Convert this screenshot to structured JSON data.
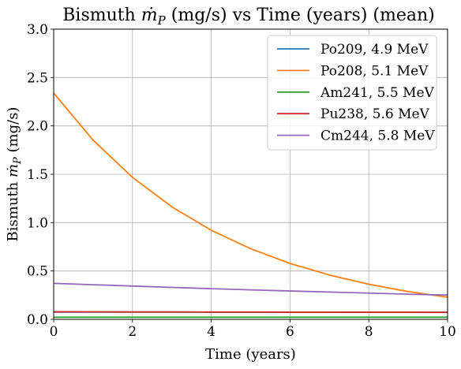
{
  "chart_data": {
    "type": "line",
    "title": {
      "prefix": "Bismuth ",
      "symbol": "ṁ",
      "subscript": "P",
      "suffix": " (mg/s) vs Time (years) (mean)"
    },
    "xlabel": "Time (years)",
    "ylabel": {
      "prefix": "Bismuth ",
      "symbol": "ṁ",
      "subscript": "P",
      "suffix": " (mg/s)"
    },
    "xlim": [
      0,
      10
    ],
    "ylim": [
      0,
      3.0
    ],
    "xticks": [
      0,
      2,
      4,
      6,
      8,
      10
    ],
    "xtick_labels": [
      "0",
      "2",
      "4",
      "6",
      "8",
      "10"
    ],
    "yticks": [
      0.0,
      0.5,
      1.0,
      1.5,
      2.0,
      2.5,
      3.0
    ],
    "ytick_labels": [
      "0.0",
      "0.5",
      "1.0",
      "1.5",
      "2.0",
      "2.5",
      "3.0"
    ],
    "grid": true,
    "legend_position": "top-right",
    "x": [
      0,
      1,
      2,
      3,
      4,
      5,
      6,
      7,
      8,
      9,
      10
    ],
    "series": [
      {
        "name": "Po209, 4.9 MeV",
        "color": "#1f77b4",
        "values": [
          0.075,
          0.075,
          0.075,
          0.075,
          0.074,
          0.074,
          0.074,
          0.074,
          0.073,
          0.073,
          0.073
        ]
      },
      {
        "name": "Po208, 5.1 MeV",
        "color": "#ff7f0e",
        "values": [
          2.34,
          1.853,
          1.468,
          1.163,
          0.921,
          0.73,
          0.578,
          0.458,
          0.363,
          0.287,
          0.228
        ]
      },
      {
        "name": "Am241, 5.5 MeV",
        "color": "#2ca02c",
        "values": [
          0.022,
          0.022,
          0.022,
          0.022,
          0.022,
          0.022,
          0.022,
          0.022,
          0.022,
          0.022,
          0.022
        ]
      },
      {
        "name": "Pu238, 5.6 MeV",
        "color": "#d62728",
        "values": [
          0.078,
          0.077,
          0.076,
          0.076,
          0.075,
          0.075,
          0.074,
          0.074,
          0.073,
          0.073,
          0.072
        ]
      },
      {
        "name": "Cm244, 5.8 MeV",
        "color": "#9467bd",
        "values": [
          0.372,
          0.358,
          0.344,
          0.33,
          0.317,
          0.305,
          0.293,
          0.282,
          0.271,
          0.26,
          0.25
        ]
      }
    ]
  }
}
